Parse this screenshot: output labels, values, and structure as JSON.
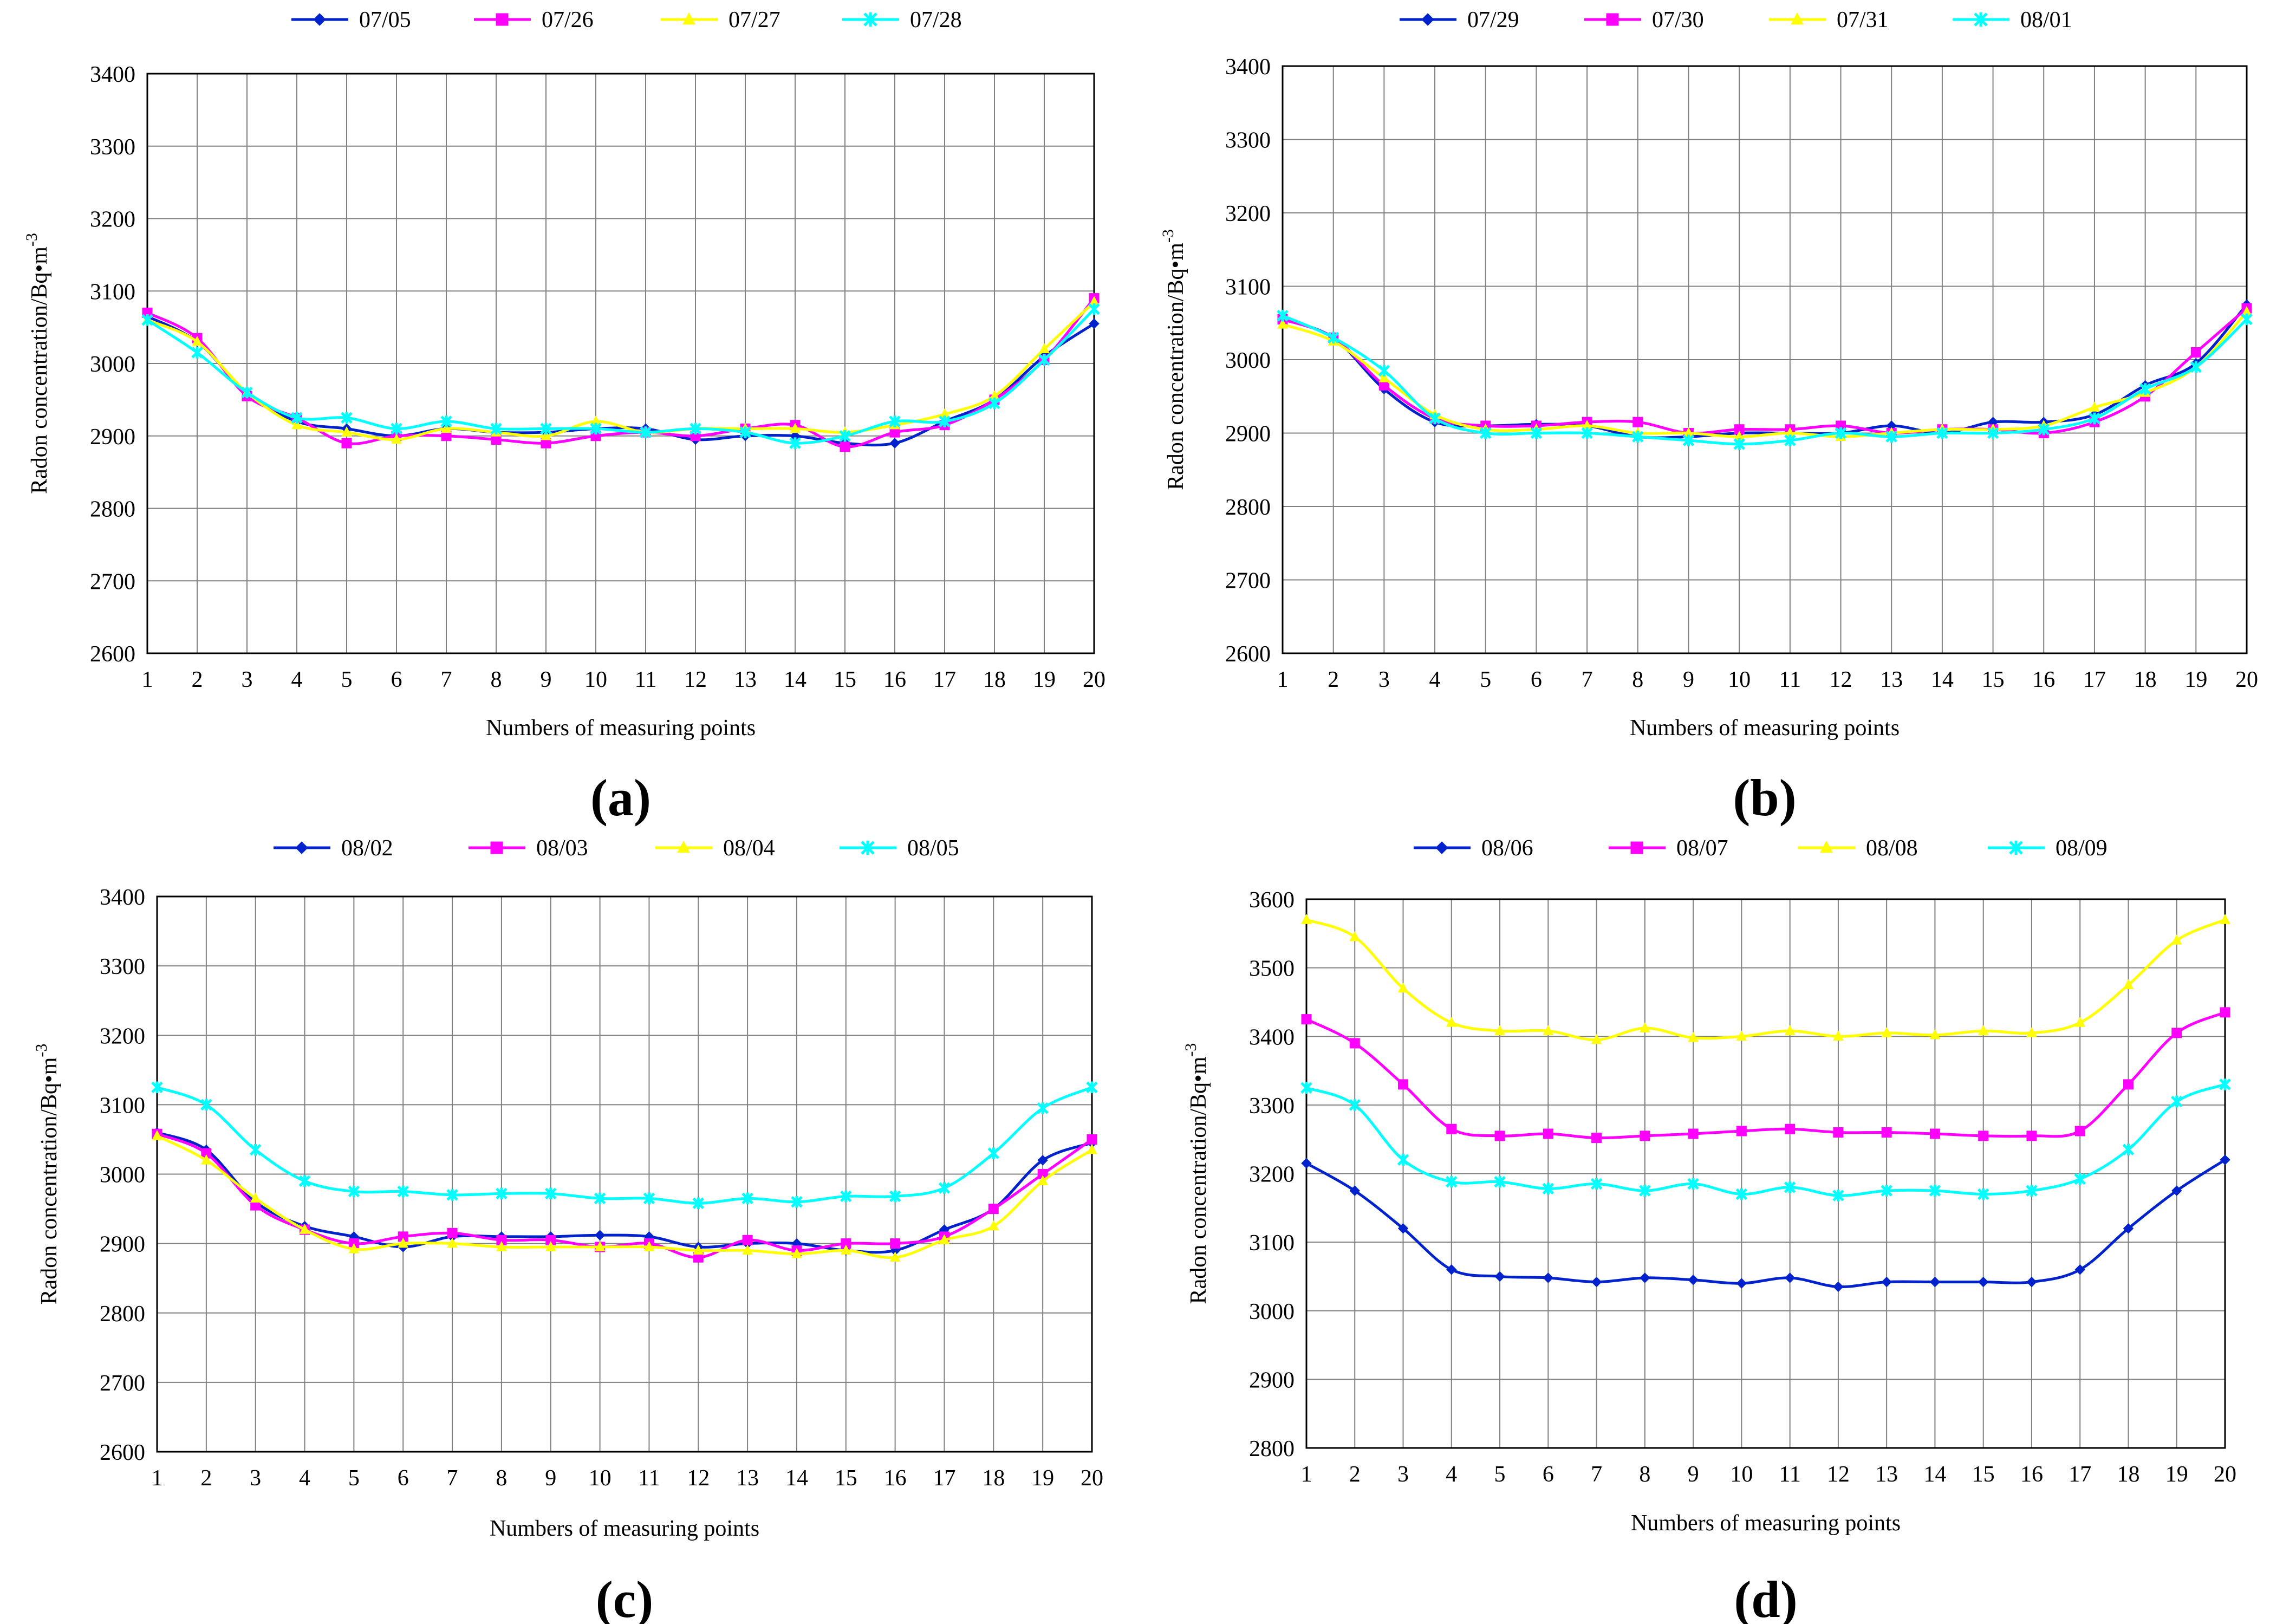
{
  "chart_data": [
    {
      "panel": "a",
      "type": "line",
      "label": "(a)",
      "xlabel": "Numbers of measuring points",
      "ylabel": "Radon concentration/Bq•m",
      "ylabel_sup": "-3",
      "x": [
        1,
        2,
        3,
        4,
        5,
        6,
        7,
        8,
        9,
        10,
        11,
        12,
        13,
        14,
        15,
        16,
        17,
        18,
        19,
        20
      ],
      "ylim": [
        2600,
        3400
      ],
      "yticks": [
        2600,
        2700,
        2800,
        2900,
        3000,
        3100,
        3200,
        3300,
        3400
      ],
      "grid": true,
      "legend_position": "top",
      "series": [
        {
          "name": "07/05",
          "color": "#0022cc",
          "marker": "diamond",
          "values": [
            3065,
            3030,
            2960,
            2920,
            2910,
            2900,
            2910,
            2905,
            2905,
            2910,
            2910,
            2895,
            2900,
            2900,
            2890,
            2890,
            2920,
            2950,
            3010,
            3055
          ]
        },
        {
          "name": "07/26",
          "color": "#ff00ff",
          "marker": "square",
          "values": [
            3070,
            3035,
            2955,
            2925,
            2890,
            2900,
            2900,
            2895,
            2890,
            2900,
            2905,
            2900,
            2910,
            2915,
            2885,
            2905,
            2915,
            2950,
            3005,
            3090
          ]
        },
        {
          "name": "07/27",
          "color": "#ffff00",
          "marker": "triangle",
          "values": [
            3060,
            3030,
            2960,
            2915,
            2905,
            2895,
            2910,
            2905,
            2900,
            2920,
            2905,
            2910,
            2910,
            2910,
            2905,
            2915,
            2930,
            2955,
            3020,
            3085
          ]
        },
        {
          "name": "07/28",
          "color": "#00ffff",
          "marker": "star",
          "values": [
            3060,
            3015,
            2960,
            2925,
            2925,
            2910,
            2920,
            2910,
            2910,
            2910,
            2905,
            2910,
            2905,
            2890,
            2900,
            2920,
            2920,
            2945,
            3005,
            3075
          ]
        }
      ]
    },
    {
      "panel": "b",
      "type": "line",
      "label": "(b)",
      "xlabel": "Numbers of measuring points",
      "ylabel": "Radon concentration/Bq•m",
      "ylabel_sup": "-3",
      "x": [
        1,
        2,
        3,
        4,
        5,
        6,
        7,
        8,
        9,
        10,
        11,
        12,
        13,
        14,
        15,
        16,
        17,
        18,
        19,
        20
      ],
      "ylim": [
        2600,
        3400
      ],
      "yticks": [
        2600,
        2700,
        2800,
        2900,
        3000,
        3100,
        3200,
        3300,
        3400
      ],
      "grid": true,
      "legend_position": "top",
      "series": [
        {
          "name": "07/29",
          "color": "#0022cc",
          "marker": "diamond",
          "values": [
            3055,
            3030,
            2960,
            2915,
            2910,
            2912,
            2910,
            2895,
            2895,
            2900,
            2900,
            2900,
            2910,
            2900,
            2915,
            2915,
            2925,
            2965,
            2995,
            3075
          ]
        },
        {
          "name": "07/30",
          "color": "#ff00ff",
          "marker": "square",
          "values": [
            3055,
            3030,
            2965,
            2920,
            2910,
            2910,
            2915,
            2915,
            2900,
            2905,
            2905,
            2910,
            2900,
            2905,
            2905,
            2900,
            2915,
            2950,
            3010,
            3070
          ]
        },
        {
          "name": "07/31",
          "color": "#ffff00",
          "marker": "triangle",
          "values": [
            3048,
            3025,
            2975,
            2925,
            2905,
            2905,
            2910,
            2900,
            2900,
            2895,
            2900,
            2895,
            2900,
            2905,
            2905,
            2910,
            2935,
            2955,
            2990,
            3065
          ]
        },
        {
          "name": "08/01",
          "color": "#00ffff",
          "marker": "star",
          "values": [
            3060,
            3030,
            2985,
            2920,
            2900,
            2900,
            2900,
            2895,
            2890,
            2885,
            2890,
            2900,
            2895,
            2900,
            2900,
            2905,
            2920,
            2960,
            2990,
            3055
          ]
        }
      ]
    },
    {
      "panel": "c",
      "type": "line",
      "label": "(c)",
      "xlabel": "Numbers of measuring points",
      "ylabel": "Radon concentration/Bq•m",
      "ylabel_sup": "-3",
      "x": [
        1,
        2,
        3,
        4,
        5,
        6,
        7,
        8,
        9,
        10,
        11,
        12,
        13,
        14,
        15,
        16,
        17,
        18,
        19,
        20
      ],
      "ylim": [
        2600,
        3400
      ],
      "yticks": [
        2600,
        2700,
        2800,
        2900,
        3000,
        3100,
        3200,
        3300,
        3400
      ],
      "grid": true,
      "legend_position": "top",
      "series": [
        {
          "name": "08/02",
          "color": "#0022cc",
          "marker": "diamond",
          "values": [
            3060,
            3035,
            2960,
            2925,
            2910,
            2895,
            2910,
            2910,
            2910,
            2912,
            2910,
            2895,
            2900,
            2900,
            2890,
            2890,
            2920,
            2950,
            3020,
            3045
          ]
        },
        {
          "name": "08/03",
          "color": "#ff00ff",
          "marker": "square",
          "values": [
            3058,
            3030,
            2955,
            2920,
            2900,
            2910,
            2915,
            2905,
            2905,
            2895,
            2900,
            2880,
            2905,
            2890,
            2900,
            2900,
            2910,
            2950,
            3000,
            3050
          ]
        },
        {
          "name": "08/04",
          "color": "#ffff00",
          "marker": "triangle",
          "values": [
            3055,
            3020,
            2965,
            2920,
            2892,
            2900,
            2900,
            2895,
            2895,
            2895,
            2895,
            2890,
            2890,
            2885,
            2890,
            2880,
            2905,
            2925,
            2990,
            3035
          ]
        },
        {
          "name": "08/05",
          "color": "#00ffff",
          "marker": "star",
          "values": [
            3125,
            3100,
            3035,
            2990,
            2975,
            2975,
            2970,
            2972,
            2972,
            2965,
            2965,
            2958,
            2965,
            2960,
            2968,
            2968,
            2980,
            3030,
            3095,
            3125
          ]
        }
      ]
    },
    {
      "panel": "d",
      "type": "line",
      "label": "(d)",
      "xlabel": "Numbers of measuring points",
      "ylabel": "Radon concentration/Bq•m",
      "ylabel_sup": "-3",
      "x": [
        1,
        2,
        3,
        4,
        5,
        6,
        7,
        8,
        9,
        10,
        11,
        12,
        13,
        14,
        15,
        16,
        17,
        18,
        19,
        20
      ],
      "ylim": [
        2800,
        3600
      ],
      "yticks": [
        2800,
        2900,
        3000,
        3100,
        3200,
        3300,
        3400,
        3500,
        3600
      ],
      "grid": true,
      "legend_position": "top",
      "series": [
        {
          "name": "08/06",
          "color": "#0022cc",
          "marker": "diamond",
          "values": [
            3215,
            3175,
            3120,
            3060,
            3050,
            3048,
            3042,
            3048,
            3045,
            3040,
            3048,
            3035,
            3042,
            3042,
            3042,
            3042,
            3060,
            3120,
            3175,
            3220
          ]
        },
        {
          "name": "08/07",
          "color": "#ff00ff",
          "marker": "square",
          "values": [
            3425,
            3390,
            3330,
            3265,
            3255,
            3258,
            3252,
            3255,
            3258,
            3262,
            3265,
            3260,
            3260,
            3258,
            3255,
            3255,
            3262,
            3330,
            3405,
            3435
          ]
        },
        {
          "name": "08/08",
          "color": "#ffff00",
          "marker": "triangle",
          "values": [
            3570,
            3545,
            3470,
            3420,
            3408,
            3408,
            3395,
            3412,
            3398,
            3400,
            3408,
            3400,
            3405,
            3402,
            3408,
            3405,
            3420,
            3475,
            3540,
            3570
          ]
        },
        {
          "name": "08/09",
          "color": "#00ffff",
          "marker": "star",
          "values": [
            3325,
            3300,
            3220,
            3188,
            3188,
            3178,
            3185,
            3175,
            3185,
            3170,
            3180,
            3168,
            3175,
            3175,
            3170,
            3175,
            3192,
            3235,
            3305,
            3330
          ]
        }
      ]
    }
  ]
}
